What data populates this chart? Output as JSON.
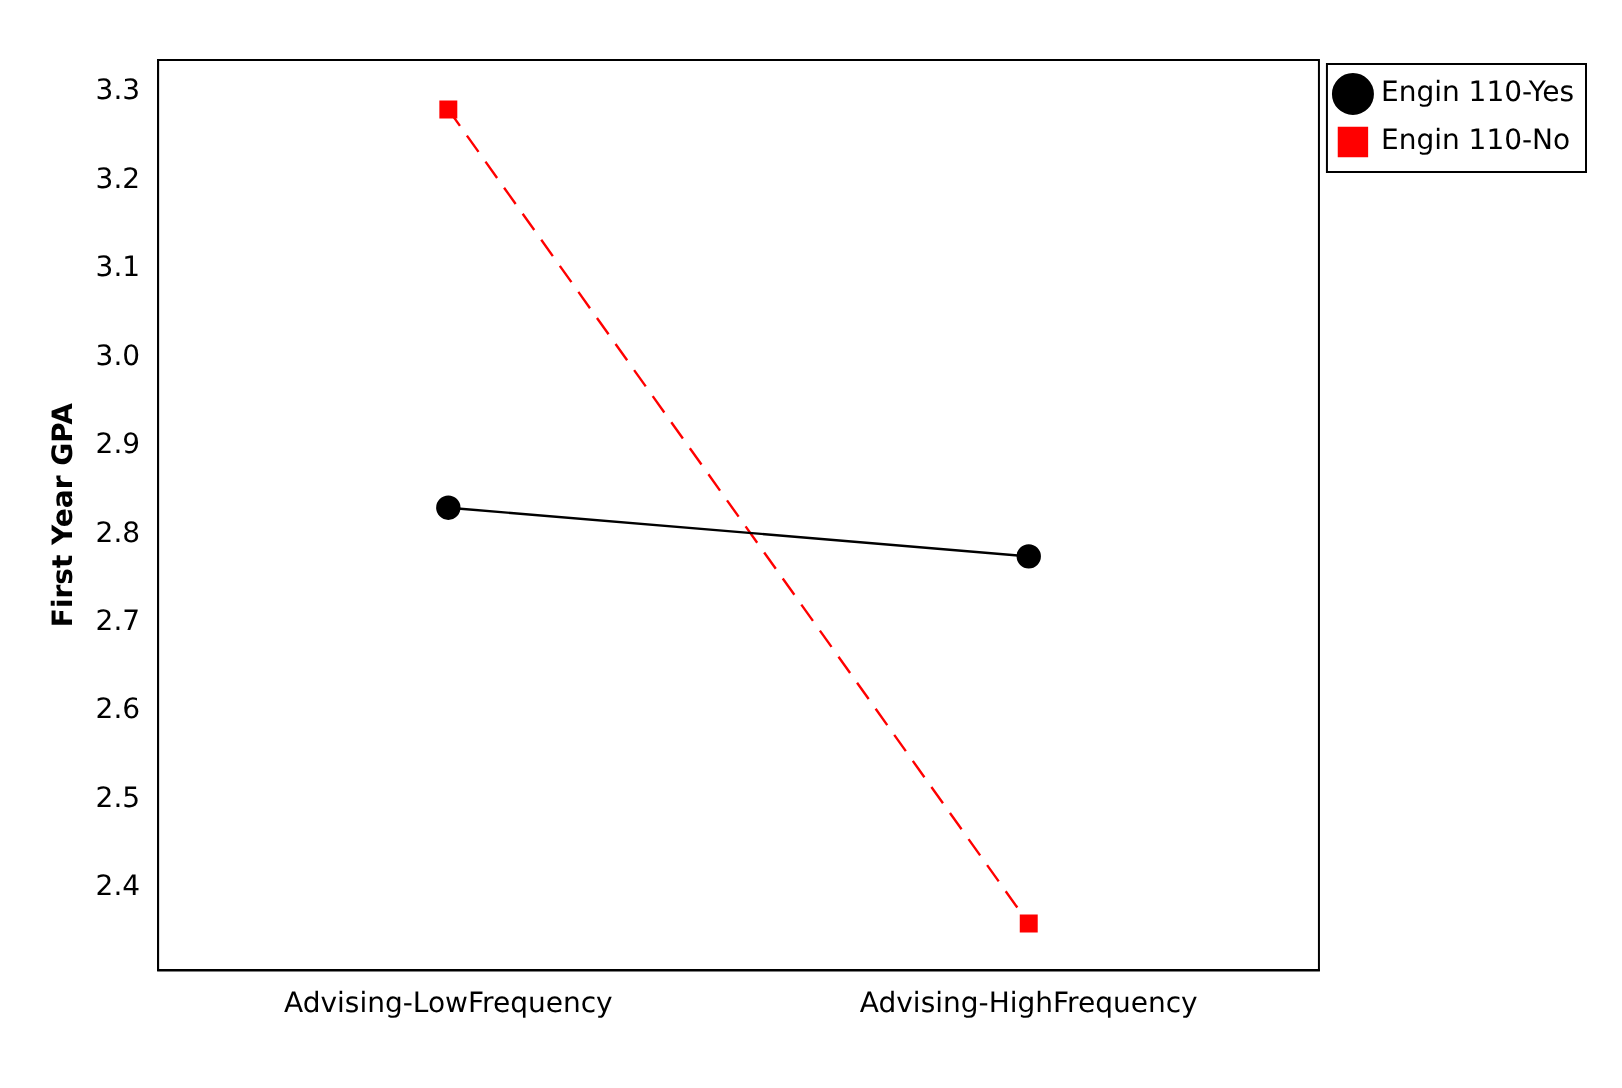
{
  "chart_data": {
    "type": "line",
    "ylabel": "First Year GPA",
    "categories": [
      "Advising-LowFrequency",
      "Advising-HighFrequency"
    ],
    "series": [
      {
        "name": "Engin 110-Yes",
        "color": "#000000",
        "values": [
          2.83,
          2.775
        ],
        "marker": "circle",
        "line_style": "solid"
      },
      {
        "name": "Engin 110-No",
        "color": "#ff0000",
        "values": [
          3.28,
          2.36
        ],
        "marker": "square",
        "line_style": "dashed"
      }
    ],
    "ylim": [
      2.307,
      3.336
    ],
    "yticks": [
      2.4,
      2.5,
      2.6,
      2.7,
      2.8,
      2.9,
      {
        "value": 3.0,
        "label": "3.0"
      },
      3.1,
      3.2,
      3.3
    ],
    "grid": false,
    "legend": "top right"
  }
}
